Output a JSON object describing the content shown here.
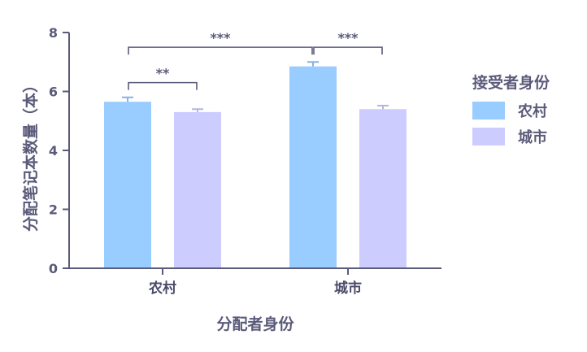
{
  "chart_data": {
    "type": "bar",
    "xlabel": "分配者身份",
    "ylabel": "分配笔记本数量（本）",
    "ylim": [
      0,
      8
    ],
    "yticks": [
      0,
      2,
      4,
      6,
      8
    ],
    "categories": [
      "农村",
      "城市"
    ],
    "legend": {
      "title": "接受者身份",
      "position": "right"
    },
    "series": [
      {
        "name": "农村",
        "color": "#99ccff",
        "values": [
          5.65,
          6.85
        ],
        "errors": [
          0.15,
          0.15
        ]
      },
      {
        "name": "城市",
        "color": "#ccccff",
        "values": [
          5.3,
          5.4
        ],
        "errors": [
          0.1,
          0.12
        ]
      }
    ],
    "significance": [
      {
        "label": "**",
        "from": {
          "category": 0,
          "series": 0
        },
        "to": {
          "category": 0,
          "series": 1
        },
        "y": 6.3
      },
      {
        "label": "***",
        "from": {
          "category": 0,
          "series": 0
        },
        "to": {
          "category": 1,
          "series": 0
        },
        "y": 7.5
      },
      {
        "label": "***",
        "from": {
          "category": 1,
          "series": 0
        },
        "to": {
          "category": 1,
          "series": 1
        },
        "y": 7.5
      }
    ]
  }
}
